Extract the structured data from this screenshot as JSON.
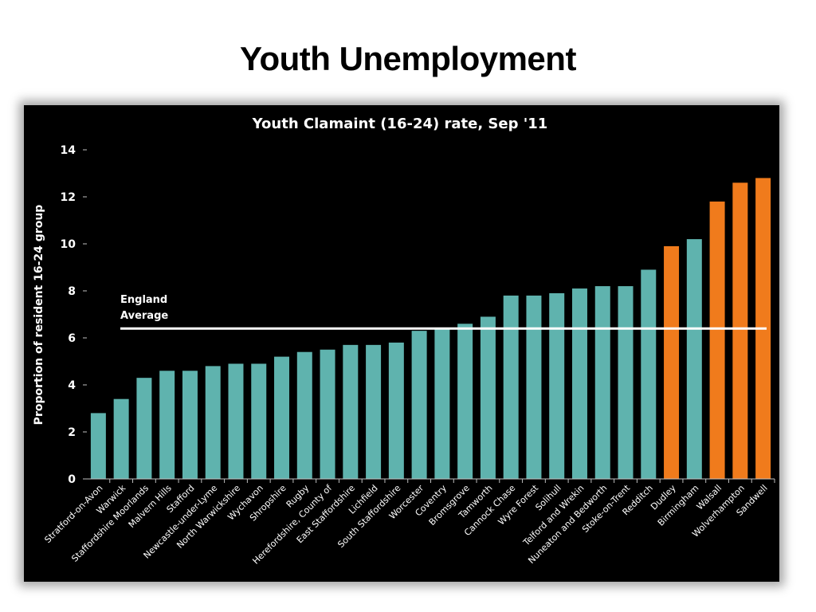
{
  "page": {
    "title": "Youth Unemployment"
  },
  "colors": {
    "bar": "#5fb3ae",
    "highlight": "#f07b1c",
    "reference": "#ffffff",
    "background": "#000000"
  },
  "chart_data": {
    "type": "bar",
    "title": "Youth Clamaint (16-24) rate, Sep '11",
    "xlabel": "",
    "ylabel": "Proportion of resident 16-24 group",
    "ylim": [
      0,
      14
    ],
    "yticks": [
      0,
      2,
      4,
      6,
      8,
      10,
      12,
      14
    ],
    "categories": [
      "Stratford-on-Avon",
      "Warwick",
      "Staffordshire Moorlands",
      "Malvern Hills",
      "Stafford",
      "Newcastle-under-Lyme",
      "North Warwickshire",
      "Wychavon",
      "Shropshire",
      "Rugby",
      "Herefordshire, County of",
      "East Staffordshire",
      "Lichfield",
      "South Staffordshire",
      "Worcester",
      "Coventry",
      "Bromsgrove",
      "Tamworth",
      "Cannock Chase",
      "Wyre Forest",
      "Solihull",
      "Telford and Wrekin",
      "Nuneaton and Bedworth",
      "Stoke-on-Trent",
      "Redditch",
      "Dudley",
      "Birmingham",
      "Walsall",
      "Wolverhampton",
      "Sandwell"
    ],
    "values": [
      2.8,
      3.4,
      4.3,
      4.6,
      4.6,
      4.8,
      4.9,
      4.9,
      5.2,
      5.4,
      5.5,
      5.7,
      5.7,
      5.8,
      6.3,
      6.4,
      6.6,
      6.9,
      7.8,
      7.8,
      7.9,
      8.1,
      8.2,
      8.2,
      8.9,
      9.9,
      10.2,
      11.8,
      12.6,
      12.8
    ],
    "highlighted": [
      "Dudley",
      "Walsall",
      "Wolverhampton",
      "Sandwell"
    ],
    "reference_line": {
      "label_lines": [
        "England",
        "Average"
      ],
      "value": 6.4
    },
    "grid": false
  }
}
